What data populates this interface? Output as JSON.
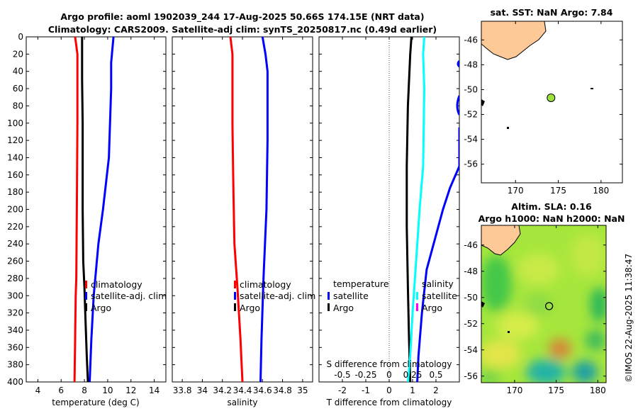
{
  "title": {
    "line1": "Argo profile: aoml 1902039_244 17-Aug-2025 50.66S 174.15E (NRT data)",
    "line2": "Climatology: CARS2009. Satellite-adj clim: synTS_20250817.nc (0.49d earlier)"
  },
  "watermark": "©IMOS 22-Aug-2025 11:38:47",
  "colors": {
    "climatology": "#ff0000",
    "satellite": "#0000ff",
    "argo": "#000000",
    "cyan": "#00ffff",
    "magenta": "#ff00ff",
    "land": "#fdc997"
  },
  "chart_data": [
    {
      "type": "line",
      "id": "temperature",
      "xlabel": "temperature (deg C)",
      "xlim": [
        3,
        15
      ],
      "ylim": [
        0,
        400
      ],
      "xticks": [
        4,
        6,
        8,
        10,
        12,
        14
      ],
      "yticks": [
        0,
        20,
        40,
        60,
        80,
        100,
        120,
        140,
        160,
        180,
        200,
        220,
        240,
        260,
        280,
        300,
        320,
        340,
        360,
        380,
        400
      ],
      "series": [
        {
          "name": "climatology",
          "color": "#ff0000",
          "x": [
            7.2,
            7.4,
            7.4,
            7.35,
            7.3,
            7.25,
            7.2,
            7.15
          ],
          "y": [
            0,
            20,
            100,
            200,
            280,
            300,
            350,
            400
          ]
        },
        {
          "name": "satellite-adj. clim",
          "color": "#0000ff",
          "x": [
            10.5,
            10.3,
            10.3,
            10.1,
            9.6,
            9.2,
            8.8,
            8.6,
            8.45
          ],
          "y": [
            0,
            30,
            60,
            140,
            200,
            240,
            300,
            350,
            400
          ]
        },
        {
          "name": "Argo",
          "color": "#000000",
          "x": [
            7.8,
            7.8,
            7.85,
            7.85,
            7.9,
            8.0,
            8.1,
            8.2,
            8.3
          ],
          "y": [
            0,
            50,
            100,
            200,
            260,
            290,
            330,
            370,
            400
          ]
        }
      ],
      "legend": {
        "position": "center-right",
        "entries": [
          "climatology",
          "satellite-adj. clim",
          "Argo"
        ]
      }
    },
    {
      "type": "line",
      "id": "salinity",
      "xlabel": "salinity",
      "xlim": [
        33.7,
        35.1
      ],
      "ylim": [
        0,
        400
      ],
      "xticks": [
        33.8,
        34,
        34.2,
        34.4,
        34.6,
        34.8,
        35
      ],
      "xtick_labels": [
        "33.8",
        "34",
        "34.2",
        "34.4",
        "34.6",
        "34.8",
        "35"
      ],
      "series": [
        {
          "name": "climatology",
          "color": "#ff0000",
          "x": [
            34.28,
            34.3,
            34.3,
            34.31,
            34.32,
            34.35,
            34.38,
            34.4
          ],
          "y": [
            0,
            20,
            100,
            180,
            240,
            290,
            350,
            400
          ]
        },
        {
          "name": "satellite-adj. clim",
          "color": "#0000ff",
          "x": [
            34.6,
            34.63,
            34.65,
            34.65,
            34.64,
            34.61,
            34.59,
            34.58
          ],
          "y": [
            0,
            20,
            40,
            120,
            200,
            280,
            350,
            400
          ]
        }
      ],
      "legend": {
        "position": "center-right",
        "entries": [
          "climatology",
          "satellite-adj. clim",
          "Argo"
        ]
      }
    },
    {
      "type": "line",
      "id": "difference",
      "xlabel": "T difference from climatology",
      "xlabel_top": "S difference from climatology",
      "xlim": [
        -3,
        3
      ],
      "ylim": [
        0,
        400
      ],
      "xticks": [
        -2,
        -1,
        0,
        1,
        2
      ],
      "xtick_labels": [
        "-2",
        "-1",
        "0",
        "1",
        "2"
      ],
      "s_ticks": [
        "-0.5",
        "-0.25",
        "0",
        "0.25",
        "0.5"
      ],
      "series": [
        {
          "name": "T diff Argo",
          "color": "#000000",
          "x": [
            0.95,
            0.9,
            0.8,
            0.75,
            0.75,
            0.8,
            0.85,
            0.9
          ],
          "y": [
            0,
            20,
            80,
            150,
            220,
            290,
            350,
            400
          ]
        },
        {
          "name": "T diff satellite",
          "color": "#0000ff",
          "x": [
            3.0,
            3.0,
            2.6,
            2.3,
            2.0,
            1.6,
            1.4,
            1.25,
            1.2
          ],
          "y": [
            105,
            150,
            175,
            200,
            230,
            270,
            320,
            370,
            400
          ]
        },
        {
          "name": "S diff satellite",
          "color": "#00ffff",
          "x": [
            1.5,
            1.45,
            1.5,
            1.45,
            1.3,
            1.15,
            1.0,
            0.9,
            0.8
          ],
          "y": [
            0,
            20,
            60,
            150,
            200,
            260,
            320,
            370,
            400
          ]
        }
      ],
      "legend_left": {
        "title": "temperature",
        "entries": [
          "satellite",
          "Argo"
        ]
      },
      "legend_right": {
        "title": "salinity",
        "entries": [
          "satellite",
          "Argo"
        ]
      }
    },
    {
      "type": "heatmap",
      "id": "sst_map",
      "title": "sat. SST: NaN Argo: 7.84",
      "xlim": [
        166,
        182.5
      ],
      "ylim": [
        -57.5,
        -44.5
      ],
      "xticks": [
        170,
        175,
        180
      ],
      "yticks": [
        -46,
        -48,
        -50,
        -52,
        -54,
        -56
      ],
      "marker": {
        "lon": 174.15,
        "lat": -50.66
      }
    },
    {
      "type": "heatmap",
      "id": "sla_map",
      "title": "Altim. SLA: 0.16",
      "subtitle": "Argo h1000: NaN h2000: NaN",
      "xlim": [
        166,
        181
      ],
      "ylim": [
        -56.5,
        -44.5
      ],
      "xticks": [
        170,
        175,
        180
      ],
      "yticks": [
        -46,
        -48,
        -50,
        -52,
        -54,
        -56
      ],
      "marker": {
        "lon": 174.15,
        "lat": -50.66
      }
    }
  ]
}
